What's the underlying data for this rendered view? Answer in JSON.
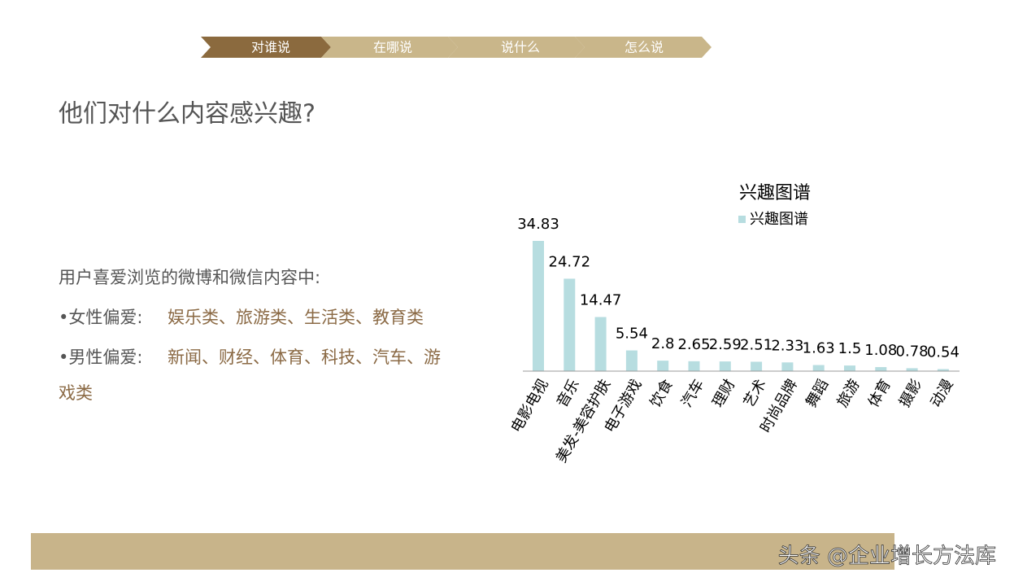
{
  "nav": [
    "对谁说",
    "在哪说",
    "说什么",
    "怎么说"
  ],
  "heading": "他们对什么内容感兴趣?",
  "body": {
    "intro": "用户喜爱浏览的微博和微信内容中:",
    "female_label": "•女性偏爱:",
    "female_items": "娱乐类、旅游类、生活类、教育类",
    "male_label": "•男性偏爱:",
    "male_items_line1": "新闻、财经、体育、科技、汽车、游",
    "male_items_line2": "戏类"
  },
  "watermark": "头条 @企业增长方法库",
  "chart_data": {
    "type": "bar",
    "title": "兴趣图谱",
    "categories": [
      "电影电视",
      "音乐",
      "美发-美容护肤",
      "电子游戏",
      "饮食",
      "汽车",
      "理财",
      "艺术",
      "时尚品牌",
      "舞蹈",
      "旅游",
      "体育",
      "摄影",
      "动漫"
    ],
    "series": [
      {
        "name": "兴趣图谱",
        "color": "#b7dde0",
        "values": [
          34.83,
          24.72,
          14.47,
          5.54,
          2.8,
          2.65,
          2.59,
          2.51,
          2.33,
          1.63,
          1.5,
          1.08,
          0.78,
          0.54
        ]
      }
    ],
    "legend": "top"
  }
}
